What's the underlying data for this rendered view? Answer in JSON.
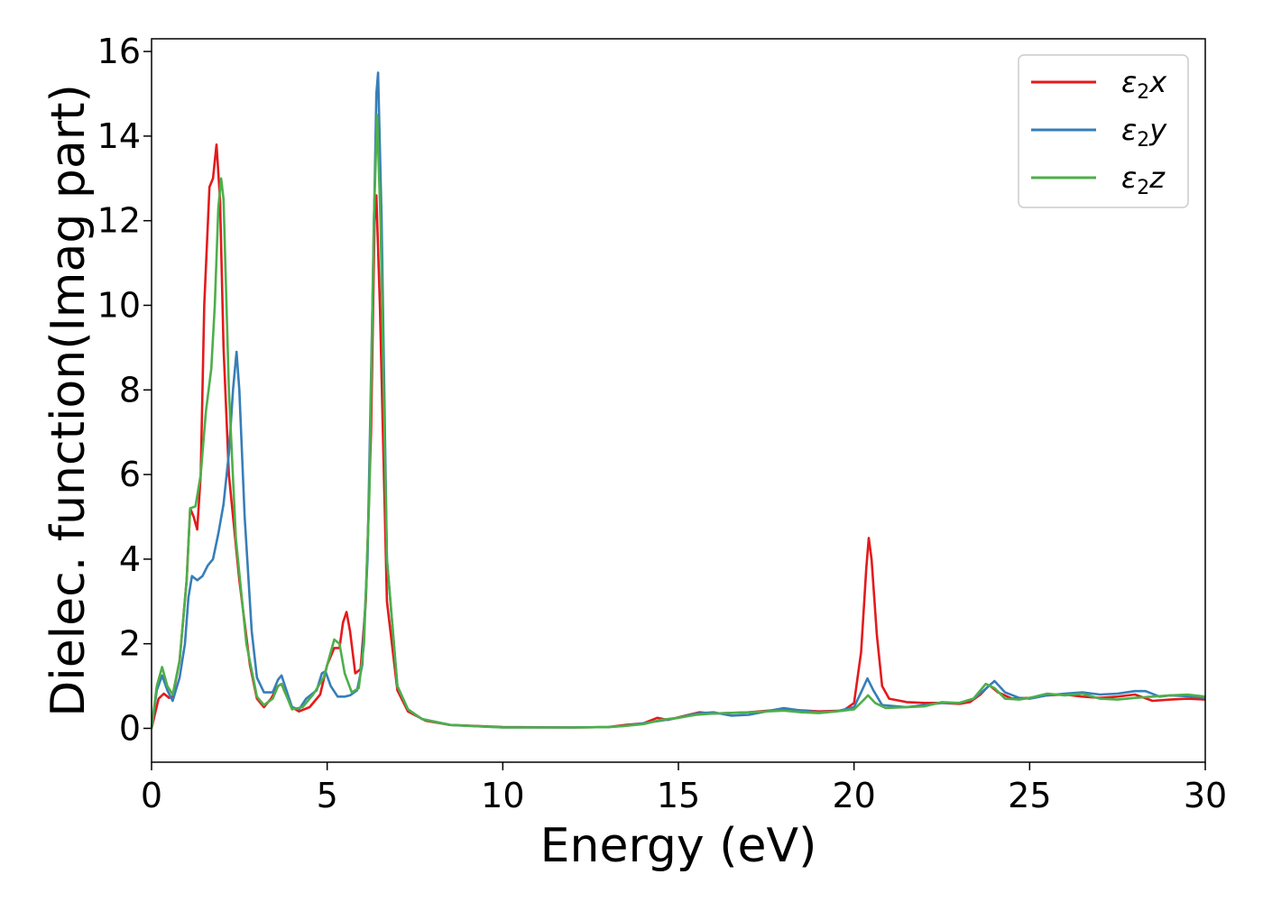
{
  "chart_data": {
    "type": "line",
    "title": "",
    "xlabel": "Energy (eV)",
    "ylabel": "Dielec. function(Imag part)",
    "xlim": [
      0,
      30
    ],
    "ylim": [
      -0.8,
      16.3
    ],
    "xticks": [
      0,
      5,
      10,
      15,
      20,
      25,
      30
    ],
    "yticks": [
      0,
      2,
      4,
      6,
      8,
      10,
      12,
      14,
      16
    ],
    "grid": false,
    "legend": "top-right",
    "series": [
      {
        "name": "ε2x",
        "legend_symbol": "ε",
        "legend_sub": "2",
        "legend_var": "x",
        "color": "#e41a1c",
        "points": [
          [
            0,
            0
          ],
          [
            0.2,
            0.7
          ],
          [
            0.35,
            0.82
          ],
          [
            0.5,
            0.72
          ],
          [
            0.6,
            0.75
          ],
          [
            0.8,
            1.6
          ],
          [
            1.0,
            3.5
          ],
          [
            1.1,
            5.2
          ],
          [
            1.2,
            5.0
          ],
          [
            1.3,
            4.7
          ],
          [
            1.4,
            6.0
          ],
          [
            1.5,
            10.0
          ],
          [
            1.65,
            12.8
          ],
          [
            1.75,
            13.0
          ],
          [
            1.85,
            13.8
          ],
          [
            1.95,
            12.5
          ],
          [
            2.05,
            9.0
          ],
          [
            2.2,
            6.0
          ],
          [
            2.5,
            3.5
          ],
          [
            2.8,
            1.5
          ],
          [
            3.0,
            0.7
          ],
          [
            3.2,
            0.5
          ],
          [
            3.4,
            0.7
          ],
          [
            3.6,
            1.0
          ],
          [
            3.7,
            1.05
          ],
          [
            3.8,
            0.85
          ],
          [
            4.0,
            0.5
          ],
          [
            4.2,
            0.4
          ],
          [
            4.5,
            0.5
          ],
          [
            4.8,
            0.8
          ],
          [
            5.0,
            1.5
          ],
          [
            5.2,
            1.9
          ],
          [
            5.35,
            1.9
          ],
          [
            5.45,
            2.5
          ],
          [
            5.55,
            2.75
          ],
          [
            5.65,
            2.3
          ],
          [
            5.8,
            1.3
          ],
          [
            5.95,
            1.4
          ],
          [
            6.1,
            3.0
          ],
          [
            6.25,
            7.0
          ],
          [
            6.35,
            12.0
          ],
          [
            6.4,
            12.6
          ],
          [
            6.5,
            10.0
          ],
          [
            6.7,
            3.0
          ],
          [
            7.0,
            0.9
          ],
          [
            7.3,
            0.4
          ],
          [
            7.8,
            0.18
          ],
          [
            8.5,
            0.08
          ],
          [
            10,
            0.03
          ],
          [
            12,
            0.02
          ],
          [
            13,
            0.03
          ],
          [
            13.5,
            0.08
          ],
          [
            14,
            0.12
          ],
          [
            14.4,
            0.25
          ],
          [
            14.7,
            0.2
          ],
          [
            15.2,
            0.3
          ],
          [
            15.6,
            0.38
          ],
          [
            16,
            0.35
          ],
          [
            17,
            0.38
          ],
          [
            18,
            0.45
          ],
          [
            19,
            0.4
          ],
          [
            19.7,
            0.42
          ],
          [
            20.0,
            0.6
          ],
          [
            20.2,
            1.8
          ],
          [
            20.35,
            3.8
          ],
          [
            20.42,
            4.5
          ],
          [
            20.5,
            4.0
          ],
          [
            20.65,
            2.2
          ],
          [
            20.8,
            1.0
          ],
          [
            21.0,
            0.7
          ],
          [
            21.5,
            0.62
          ],
          [
            22,
            0.6
          ],
          [
            22.5,
            0.6
          ],
          [
            23,
            0.58
          ],
          [
            23.3,
            0.62
          ],
          [
            23.6,
            0.8
          ],
          [
            23.85,
            1.02
          ],
          [
            24.1,
            0.85
          ],
          [
            24.5,
            0.7
          ],
          [
            25,
            0.72
          ],
          [
            25.5,
            0.78
          ],
          [
            26,
            0.8
          ],
          [
            26.5,
            0.75
          ],
          [
            27,
            0.72
          ],
          [
            27.5,
            0.75
          ],
          [
            28,
            0.8
          ],
          [
            28.5,
            0.65
          ],
          [
            29,
            0.68
          ],
          [
            29.5,
            0.7
          ],
          [
            30,
            0.68
          ]
        ]
      },
      {
        "name": "ε2y",
        "legend_symbol": "ε",
        "legend_sub": "2",
        "legend_var": "y",
        "color": "#377eb8",
        "points": [
          [
            0,
            0
          ],
          [
            0.15,
            0.9
          ],
          [
            0.3,
            1.25
          ],
          [
            0.45,
            0.9
          ],
          [
            0.6,
            0.65
          ],
          [
            0.8,
            1.2
          ],
          [
            0.95,
            2.0
          ],
          [
            1.05,
            3.1
          ],
          [
            1.15,
            3.6
          ],
          [
            1.3,
            3.5
          ],
          [
            1.45,
            3.6
          ],
          [
            1.6,
            3.85
          ],
          [
            1.75,
            4.0
          ],
          [
            1.9,
            4.6
          ],
          [
            2.05,
            5.3
          ],
          [
            2.2,
            6.5
          ],
          [
            2.32,
            8.0
          ],
          [
            2.42,
            8.9
          ],
          [
            2.5,
            8.0
          ],
          [
            2.65,
            5.0
          ],
          [
            2.85,
            2.3
          ],
          [
            3.0,
            1.2
          ],
          [
            3.2,
            0.85
          ],
          [
            3.45,
            0.85
          ],
          [
            3.6,
            1.15
          ],
          [
            3.7,
            1.25
          ],
          [
            3.8,
            1.0
          ],
          [
            4.0,
            0.5
          ],
          [
            4.2,
            0.45
          ],
          [
            4.4,
            0.7
          ],
          [
            4.7,
            0.9
          ],
          [
            4.85,
            1.3
          ],
          [
            4.95,
            1.35
          ],
          [
            5.1,
            1.0
          ],
          [
            5.3,
            0.75
          ],
          [
            5.5,
            0.75
          ],
          [
            5.65,
            0.78
          ],
          [
            5.85,
            0.9
          ],
          [
            6.0,
            1.5
          ],
          [
            6.15,
            4.0
          ],
          [
            6.3,
            10.5
          ],
          [
            6.4,
            15.0
          ],
          [
            6.45,
            15.5
          ],
          [
            6.55,
            12.0
          ],
          [
            6.7,
            4.0
          ],
          [
            7.0,
            1.0
          ],
          [
            7.3,
            0.45
          ],
          [
            7.7,
            0.22
          ],
          [
            8.5,
            0.08
          ],
          [
            10,
            0.02
          ],
          [
            12,
            0.02
          ],
          [
            13,
            0.03
          ],
          [
            13.5,
            0.06
          ],
          [
            14,
            0.12
          ],
          [
            14.5,
            0.18
          ],
          [
            15,
            0.25
          ],
          [
            15.5,
            0.35
          ],
          [
            16,
            0.38
          ],
          [
            16.5,
            0.3
          ],
          [
            17,
            0.32
          ],
          [
            17.5,
            0.4
          ],
          [
            18,
            0.48
          ],
          [
            18.5,
            0.42
          ],
          [
            19,
            0.38
          ],
          [
            19.5,
            0.4
          ],
          [
            20.0,
            0.5
          ],
          [
            20.2,
            0.85
          ],
          [
            20.38,
            1.18
          ],
          [
            20.55,
            0.9
          ],
          [
            20.8,
            0.55
          ],
          [
            21.5,
            0.5
          ],
          [
            22,
            0.55
          ],
          [
            22.5,
            0.6
          ],
          [
            23,
            0.6
          ],
          [
            23.4,
            0.7
          ],
          [
            23.7,
            0.9
          ],
          [
            24.0,
            1.12
          ],
          [
            24.3,
            0.85
          ],
          [
            24.7,
            0.72
          ],
          [
            25,
            0.7
          ],
          [
            25.5,
            0.78
          ],
          [
            26,
            0.82
          ],
          [
            26.5,
            0.85
          ],
          [
            27,
            0.8
          ],
          [
            27.5,
            0.82
          ],
          [
            28,
            0.88
          ],
          [
            28.3,
            0.88
          ],
          [
            28.7,
            0.75
          ],
          [
            29,
            0.78
          ],
          [
            29.5,
            0.76
          ],
          [
            30,
            0.72
          ]
        ]
      },
      {
        "name": "ε2z",
        "legend_symbol": "ε",
        "legend_sub": "2",
        "legend_var": "z",
        "color": "#4daf4a",
        "points": [
          [
            0,
            0
          ],
          [
            0.15,
            1.0
          ],
          [
            0.3,
            1.45
          ],
          [
            0.45,
            1.0
          ],
          [
            0.6,
            0.8
          ],
          [
            0.8,
            1.6
          ],
          [
            1.0,
            3.5
          ],
          [
            1.1,
            5.2
          ],
          [
            1.25,
            5.25
          ],
          [
            1.4,
            6.0
          ],
          [
            1.55,
            7.5
          ],
          [
            1.7,
            8.5
          ],
          [
            1.8,
            10.0
          ],
          [
            1.9,
            12.3
          ],
          [
            1.98,
            13.0
          ],
          [
            2.05,
            12.5
          ],
          [
            2.2,
            8.0
          ],
          [
            2.4,
            4.5
          ],
          [
            2.7,
            2.0
          ],
          [
            3.0,
            0.75
          ],
          [
            3.2,
            0.55
          ],
          [
            3.45,
            0.7
          ],
          [
            3.6,
            1.0
          ],
          [
            3.7,
            1.05
          ],
          [
            3.85,
            0.75
          ],
          [
            4.0,
            0.45
          ],
          [
            4.3,
            0.5
          ],
          [
            4.6,
            0.8
          ],
          [
            4.9,
            1.2
          ],
          [
            5.1,
            1.8
          ],
          [
            5.2,
            2.1
          ],
          [
            5.35,
            2.0
          ],
          [
            5.5,
            1.3
          ],
          [
            5.7,
            0.85
          ],
          [
            5.9,
            0.95
          ],
          [
            6.05,
            2.0
          ],
          [
            6.2,
            5.5
          ],
          [
            6.33,
            12.0
          ],
          [
            6.42,
            14.5
          ],
          [
            6.52,
            12.0
          ],
          [
            6.7,
            4.0
          ],
          [
            7.0,
            1.0
          ],
          [
            7.3,
            0.45
          ],
          [
            7.7,
            0.22
          ],
          [
            8.5,
            0.08
          ],
          [
            10,
            0.02
          ],
          [
            12,
            0.02
          ],
          [
            13,
            0.03
          ],
          [
            13.5,
            0.06
          ],
          [
            14,
            0.1
          ],
          [
            14.5,
            0.2
          ],
          [
            15,
            0.25
          ],
          [
            15.5,
            0.32
          ],
          [
            16,
            0.35
          ],
          [
            17,
            0.38
          ],
          [
            18,
            0.42
          ],
          [
            18.5,
            0.38
          ],
          [
            19,
            0.36
          ],
          [
            19.5,
            0.4
          ],
          [
            20.0,
            0.45
          ],
          [
            20.25,
            0.65
          ],
          [
            20.4,
            0.78
          ],
          [
            20.6,
            0.6
          ],
          [
            20.9,
            0.48
          ],
          [
            21.5,
            0.5
          ],
          [
            22,
            0.52
          ],
          [
            22.5,
            0.62
          ],
          [
            23,
            0.6
          ],
          [
            23.4,
            0.7
          ],
          [
            23.75,
            1.05
          ],
          [
            24.0,
            0.95
          ],
          [
            24.3,
            0.7
          ],
          [
            24.7,
            0.68
          ],
          [
            25,
            0.72
          ],
          [
            25.5,
            0.82
          ],
          [
            26,
            0.78
          ],
          [
            26.5,
            0.82
          ],
          [
            27,
            0.7
          ],
          [
            27.5,
            0.68
          ],
          [
            28,
            0.72
          ],
          [
            28.5,
            0.75
          ],
          [
            29,
            0.78
          ],
          [
            29.5,
            0.8
          ],
          [
            30,
            0.75
          ]
        ]
      }
    ]
  }
}
